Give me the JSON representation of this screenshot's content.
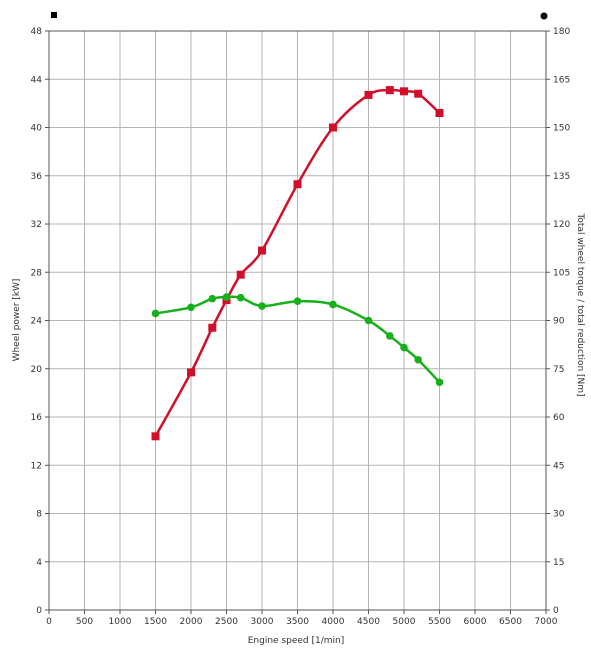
{
  "chart_data": {
    "type": "line",
    "title": "",
    "xlabel": "Engine speed [1/min]",
    "ylabel_left": "Wheel power [kW]",
    "ylabel_right": "Total wheel torque / total reduction [Nm]",
    "xlim": [
      0,
      7000
    ],
    "ylim_left": [
      0,
      48
    ],
    "ylim_right": [
      0,
      180
    ],
    "x_ticks": [
      "0",
      "500",
      "1000",
      "1500",
      "2000",
      "2500",
      "3000",
      "3500",
      "4000",
      "4500",
      "5000",
      "5500",
      "6000",
      "6500",
      "7000"
    ],
    "y_ticks_left": [
      "0",
      "4",
      "8",
      "12",
      "16",
      "20",
      "24",
      "28",
      "32",
      "36",
      "40",
      "44",
      "48"
    ],
    "y_ticks_right": [
      "0",
      "15",
      "30",
      "45",
      "60",
      "75",
      "90",
      "105",
      "120",
      "135",
      "150",
      "165",
      "180"
    ],
    "grid": true,
    "series": [
      {
        "axis": "left",
        "color": "#d0102a",
        "marker": "square",
        "points": [
          [
            1500,
            14.4
          ],
          [
            2000,
            19.7
          ],
          [
            2300,
            23.4
          ],
          [
            2500,
            25.7
          ],
          [
            2700,
            27.8
          ],
          [
            3000,
            29.8
          ],
          [
            3500,
            35.3
          ],
          [
            4000,
            40.0
          ],
          [
            4500,
            42.7
          ],
          [
            4800,
            43.1
          ],
          [
            5000,
            43.0
          ],
          [
            5200,
            42.8
          ],
          [
            5500,
            41.2
          ]
        ]
      },
      {
        "axis": "right",
        "color": "#18b01a",
        "marker": "circle",
        "points": [
          [
            1500,
            92.2
          ],
          [
            2000,
            94.1
          ],
          [
            2300,
            96.8
          ],
          [
            2500,
            97.3
          ],
          [
            2700,
            97.1
          ],
          [
            3000,
            94.5
          ],
          [
            3500,
            96.0
          ],
          [
            4000,
            95.0
          ],
          [
            4500,
            90.0
          ],
          [
            4800,
            85.2
          ],
          [
            5000,
            81.6
          ],
          [
            5200,
            77.8
          ],
          [
            5500,
            70.8
          ]
        ]
      }
    ]
  },
  "corner_marks": {
    "left": {
      "color": "#000000"
    },
    "right": {
      "color": "#000000"
    }
  }
}
